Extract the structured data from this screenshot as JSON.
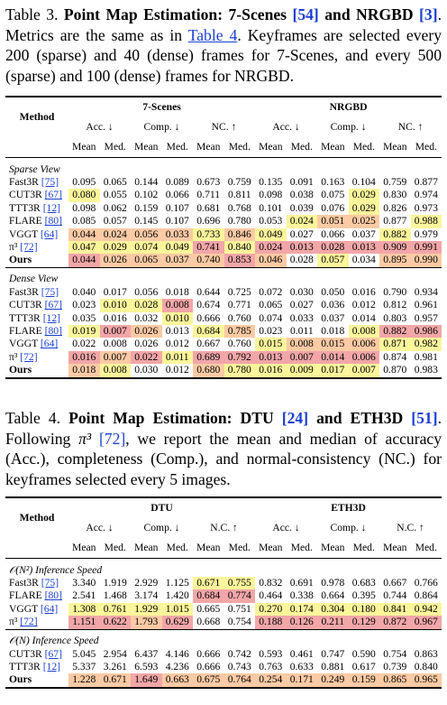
{
  "table3": {
    "caption_label": "Table 3.",
    "caption_title": "Point Map Estimation: 7-Scenes",
    "caption_ref1": "[54]",
    "caption_and": "and NRGBD",
    "caption_ref2": "[3]",
    "caption_body1": ". Metrics are the same as in ",
    "caption_link": "Table 4",
    "caption_body2": ". Keyframes are selected every 200 (sparse) and 40 (dense) frames for 7-Scenes, and every 500 (sparse) and 100 (dense) frames for NRGBD.",
    "method_header": "Method",
    "datasets": [
      "7-Scenes",
      "NRGBD"
    ],
    "metric_headers": [
      "Acc. ↓",
      "Comp. ↓",
      "NC. ↑",
      "Acc. ↓",
      "Comp. ↓",
      "NC. ↑"
    ],
    "sub_headers": [
      "Mean",
      "Med.",
      "Mean",
      "Med.",
      "Mean",
      "Med.",
      "Mean",
      "Med.",
      "Mean",
      "Med.",
      "Mean",
      "Med."
    ],
    "groups": [
      {
        "title": "Sparse View",
        "rows": [
          {
            "name": "Fast3R",
            "ref": "[75]",
            "values": [
              "0.095",
              "0.065",
              "0.144",
              "0.089",
              "0.673",
              "0.759",
              "0.135",
              "0.091",
              "0.163",
              "0.104",
              "0.759",
              "0.877"
            ],
            "hl": [
              "",
              "",
              "",
              "",
              "",
              "",
              "",
              "",
              "",
              "",
              "",
              ""
            ]
          },
          {
            "name": "CUT3R",
            "ref": "[67]",
            "values": [
              "0.080",
              "0.055",
              "0.102",
              "0.066",
              "0.711",
              "0.811",
              "0.098",
              "0.038",
              "0.075",
              "0.029",
              "0.830",
              "0.974"
            ],
            "hl": [
              "b3",
              "",
              "",
              "",
              "",
              "",
              "",
              "",
              "",
              "b3",
              "",
              ""
            ]
          },
          {
            "name": "TTT3R",
            "ref": "[12]",
            "values": [
              "0.098",
              "0.062",
              "0.159",
              "0.107",
              "0.681",
              "0.768",
              "0.101",
              "0.039",
              "0.076",
              "0.029",
              "0.826",
              "0.973"
            ],
            "hl": [
              "",
              "",
              "",
              "",
              "",
              "",
              "",
              "",
              "",
              "b3",
              "",
              ""
            ]
          },
          {
            "name": "FLARE",
            "ref": "[80]",
            "values": [
              "0.085",
              "0.057",
              "0.145",
              "0.107",
              "0.696",
              "0.780",
              "0.053",
              "0.024",
              "0.051",
              "0.025",
              "0.877",
              "0.988"
            ],
            "hl": [
              "",
              "",
              "",
              "",
              "",
              "",
              "",
              "b3",
              "b2",
              "b2",
              "",
              "b3"
            ]
          },
          {
            "name": "VGGT",
            "ref": "[64]",
            "values": [
              "0.044",
              "0.024",
              "0.056",
              "0.033",
              "0.733",
              "0.846",
              "0.049",
              "0.027",
              "0.066",
              "0.037",
              "0.882",
              "0.979"
            ],
            "hl": [
              "b2",
              "b2",
              "b2",
              "b2",
              "b3",
              "b2",
              "b3",
              "",
              "",
              "",
              "b3",
              ""
            ]
          },
          {
            "name": "π³",
            "ref": "[72]",
            "values": [
              "0.047",
              "0.029",
              "0.074",
              "0.049",
              "0.741",
              "0.840",
              "0.024",
              "0.013",
              "0.028",
              "0.013",
              "0.909",
              "0.991"
            ],
            "hl": [
              "b3",
              "b3",
              "b3",
              "b3",
              "b1",
              "b3",
              "b1",
              "b1",
              "b1",
              "b1",
              "b1",
              "b1"
            ]
          },
          {
            "name": "Ours",
            "ref": "",
            "values": [
              "0.044",
              "0.026",
              "0.065",
              "0.037",
              "0.740",
              "0.853",
              "0.046",
              "0.028",
              "0.057",
              "0.034",
              "0.895",
              "0.990"
            ],
            "hl": [
              "b1",
              "b2",
              "b2",
              "b2",
              "b2",
              "b1",
              "b2",
              "",
              "b3",
              "",
              "b2",
              "b2"
            ]
          }
        ]
      },
      {
        "title": "Dense View",
        "rows": [
          {
            "name": "Fast3R",
            "ref": "[75]",
            "values": [
              "0.040",
              "0.017",
              "0.056",
              "0.018",
              "0.644",
              "0.725",
              "0.072",
              "0.030",
              "0.050",
              "0.016",
              "0.790",
              "0.934"
            ],
            "hl": [
              "",
              "",
              "",
              "",
              "",
              "",
              "",
              "",
              "",
              "",
              "",
              ""
            ]
          },
          {
            "name": "CUT3R",
            "ref": "[67]",
            "values": [
              "0.023",
              "0.010",
              "0.028",
              "0.008",
              "0.674",
              "0.771",
              "0.065",
              "0.027",
              "0.036",
              "0.012",
              "0.812",
              "0.961"
            ],
            "hl": [
              "",
              "b3",
              "b3",
              "b1",
              "",
              "",
              "",
              "",
              "",
              "",
              "",
              ""
            ]
          },
          {
            "name": "TTT3R",
            "ref": "[12]",
            "values": [
              "0.035",
              "0.016",
              "0.032",
              "0.010",
              "0.666",
              "0.760",
              "0.074",
              "0.033",
              "0.037",
              "0.014",
              "0.803",
              "0.957"
            ],
            "hl": [
              "",
              "",
              "",
              "b3",
              "",
              "",
              "",
              "",
              "",
              "",
              "",
              ""
            ]
          },
          {
            "name": "FLARE",
            "ref": "[80]",
            "values": [
              "0.019",
              "0.007",
              "0.026",
              "0.013",
              "0.684",
              "0.785",
              "0.023",
              "0.011",
              "0.018",
              "0.008",
              "0.882",
              "0.986"
            ],
            "hl": [
              "b3",
              "b1",
              "b2",
              "",
              "b3",
              "b2",
              "",
              "",
              "",
              "b3",
              "b1",
              "b1"
            ]
          },
          {
            "name": "VGGT",
            "ref": "[64]",
            "values": [
              "0.022",
              "0.008",
              "0.026",
              "0.012",
              "0.667",
              "0.760",
              "0.015",
              "0.008",
              "0.015",
              "0.006",
              "0.871",
              "0.982"
            ],
            "hl": [
              "",
              "",
              "",
              "",
              "",
              "",
              "b3",
              "b2",
              "b2",
              "b2",
              "b3",
              "b3"
            ]
          },
          {
            "name": "π³",
            "ref": "[72]",
            "values": [
              "0.016",
              "0.007",
              "0.022",
              "0.011",
              "0.689",
              "0.792",
              "0.013",
              "0.007",
              "0.014",
              "0.006",
              "0.874",
              "0.981"
            ],
            "hl": [
              "b1",
              "b2",
              "b1",
              "b3",
              "b1",
              "b1",
              "b1",
              "b1",
              "b1",
              "b1",
              "",
              ""
            ]
          },
          {
            "name": "Ours",
            "ref": "",
            "values": [
              "0.018",
              "0.008",
              "0.030",
              "0.012",
              "0.680",
              "0.780",
              "0.016",
              "0.009",
              "0.017",
              "0.007",
              "0.870",
              "0.983"
            ],
            "hl": [
              "b2",
              "b3",
              "",
              "",
              "b2",
              "b3",
              "b3",
              "b3",
              "b3",
              "b3",
              "",
              ""
            ]
          }
        ]
      }
    ]
  },
  "table4": {
    "caption_label": "Table 4.",
    "caption_title": "Point Map Estimation: DTU",
    "caption_ref1": "[24]",
    "caption_and": "and ETH3D",
    "caption_ref2": "[51]",
    "caption_body1": ". Following ",
    "caption_pi": "π³",
    "caption_ref3": "[72]",
    "caption_body2": ", we report the mean and median of accuracy (Acc.), completeness (Comp.), and normal-consistency (NC.) for keyframes selected every 5 images.",
    "method_header": "Method",
    "datasets": [
      "DTU",
      "ETH3D"
    ],
    "metric_headers": [
      "Acc. ↓",
      "Comp. ↓",
      "N.C. ↑",
      "Acc. ↓",
      "Comp. ↓",
      "N.C. ↑"
    ],
    "sub_headers": [
      "Mean",
      "Med.",
      "Mean",
      "Med.",
      "Mean",
      "Med.",
      "Mean",
      "Med.",
      "Mean",
      "Med.",
      "Mean",
      "Med."
    ],
    "groups": [
      {
        "title": "𝒪(N²) Inference Speed",
        "rows": [
          {
            "name": "Fast3R",
            "ref": "[75]",
            "values": [
              "3.340",
              "1.919",
              "2.929",
              "1.125",
              "0.671",
              "0.755",
              "0.832",
              "0.691",
              "0.978",
              "0.683",
              "0.667",
              "0.766"
            ],
            "hl": [
              "",
              "",
              "",
              "",
              "b3",
              "b3",
              "",
              "",
              "",
              "",
              "",
              ""
            ]
          },
          {
            "name": "FLARE",
            "ref": "[80]",
            "values": [
              "2.541",
              "1.468",
              "3.174",
              "1.420",
              "0.684",
              "0.774",
              "0.464",
              "0.338",
              "0.664",
              "0.395",
              "0.744",
              "0.864"
            ],
            "hl": [
              "",
              "",
              "",
              "",
              "b1",
              "b1",
              "",
              "",
              "",
              "",
              "",
              ""
            ]
          },
          {
            "name": "VGGT",
            "ref": "[64]",
            "values": [
              "1.308",
              "0.761",
              "1.929",
              "1.015",
              "0.665",
              "0.751",
              "0.270",
              "0.174",
              "0.304",
              "0.180",
              "0.841",
              "0.942"
            ],
            "hl": [
              "b3",
              "b3",
              "b3",
              "b3",
              "",
              "",
              "b3",
              "b3",
              "b3",
              "b3",
              "b3",
              "b3"
            ]
          },
          {
            "name": "π³",
            "ref": "[72]",
            "values": [
              "1.151",
              "0.622",
              "1.793",
              "0.629",
              "0.668",
              "0.754",
              "0.188",
              "0.126",
              "0.211",
              "0.129",
              "0.872",
              "0.967"
            ],
            "hl": [
              "b1",
              "b1",
              "b2",
              "b1",
              "",
              "",
              "b1",
              "b1",
              "b1",
              "b1",
              "b1",
              "b1"
            ]
          }
        ]
      },
      {
        "title": "𝒪(N) Inference Speed",
        "rows": [
          {
            "name": "CUT3R",
            "ref": "[67]",
            "values": [
              "5.045",
              "2.954",
              "6.437",
              "4.146",
              "0.666",
              "0.742",
              "0.593",
              "0.461",
              "0.747",
              "0.590",
              "0.754",
              "0.863"
            ],
            "hl": [
              "",
              "",
              "",
              "",
              "",
              "",
              "",
              "",
              "",
              "",
              "",
              ""
            ]
          },
          {
            "name": "TTT3R",
            "ref": "[12]",
            "values": [
              "5.337",
              "3.261",
              "6.593",
              "4.236",
              "0.666",
              "0.743",
              "0.763",
              "0.633",
              "0.881",
              "0.617",
              "0.739",
              "0.840"
            ],
            "hl": [
              "",
              "",
              "",
              "",
              "",
              "",
              "",
              "",
              "",
              "",
              "",
              ""
            ]
          },
          {
            "name": "Ours",
            "ref": "",
            "values": [
              "1.228",
              "0.671",
              "1.649",
              "0.663",
              "0.675",
              "0.764",
              "0.254",
              "0.171",
              "0.249",
              "0.159",
              "0.865",
              "0.965"
            ],
            "hl": [
              "b2",
              "b2",
              "b1",
              "b2",
              "b2",
              "b2",
              "b2",
              "b2",
              "b2",
              "b2",
              "b2",
              "b2"
            ]
          }
        ]
      }
    ]
  }
}
